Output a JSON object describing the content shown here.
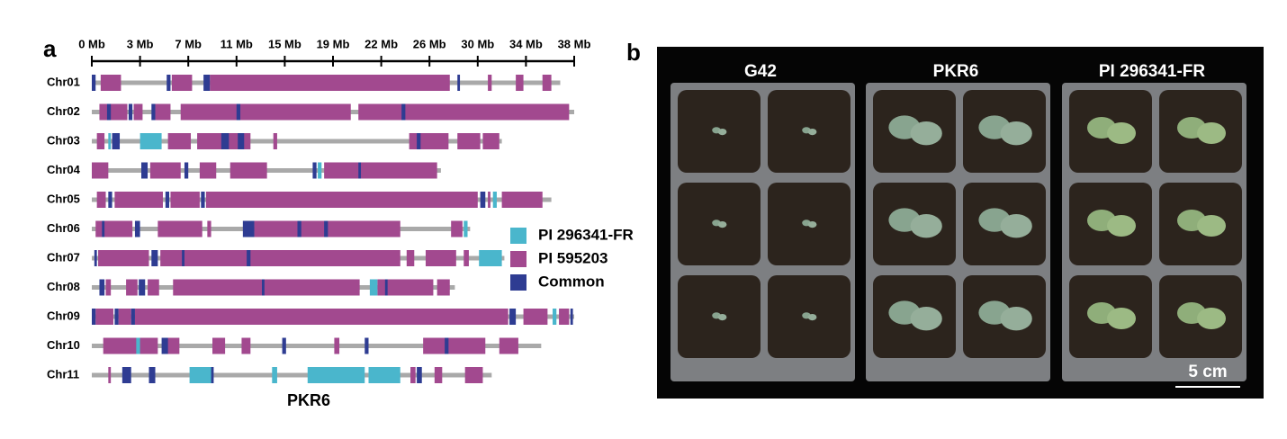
{
  "panel_a": {
    "label": "a",
    "axis_labels": [
      "0 Mb",
      "3 Mb",
      "7 Mb",
      "11 Mb",
      "15 Mb",
      "19 Mb",
      "22 Mb",
      "26 Mb",
      "30 Mb",
      "34 Mb",
      "38 Mb"
    ],
    "legend": [
      {
        "name": "PI 296341-FR",
        "color": "#4ab6cc"
      },
      {
        "name": "PI 595203",
        "color": "#a2498f"
      },
      {
        "name": "Common",
        "color": "#2e3c92"
      }
    ],
    "chromosomes": [
      {
        "name": "Chr01",
        "length": 36.9,
        "blocks": [
          [],
          [
            [
              0.7,
              2.3
            ],
            [
              6.3,
              7.9
            ],
            [
              9.3,
              28.2
            ],
            [
              31.2,
              31.5
            ],
            [
              33.4,
              34
            ],
            [
              35.5,
              36.2
            ]
          ],
          [
            [
              0,
              0.3
            ],
            [
              8.8,
              9.3
            ],
            [
              5.9,
              6.2
            ],
            [
              28.8,
              29
            ]
          ]
        ]
      },
      {
        "name": "Chr02",
        "length": 38,
        "blocks": [
          [],
          [
            [
              0.6,
              2.8
            ],
            [
              3.3,
              4
            ],
            [
              5,
              6.2
            ],
            [
              7,
              20.4
            ],
            [
              21,
              37.6
            ]
          ],
          [
            [
              1.2,
              1.5
            ],
            [
              2.9,
              3.2
            ],
            [
              4.7,
              5
            ],
            [
              11.4,
              11.7
            ],
            [
              24.4,
              24.7
            ]
          ]
        ]
      },
      {
        "name": "Chr03",
        "length": 32.3,
        "blocks": [
          [
            [
              3.8,
              5.5
            ],
            [
              1.3,
              1.5
            ]
          ],
          [
            [
              0.4,
              1
            ],
            [
              6,
              7.8
            ],
            [
              8.3,
              12.5
            ],
            [
              14.3,
              14.6
            ],
            [
              25,
              28.1
            ],
            [
              28.8,
              30.6
            ],
            [
              30.8,
              32.1
            ]
          ],
          [
            [
              1.6,
              2.2
            ],
            [
              10.2,
              10.8
            ],
            [
              11.5,
              12
            ],
            [
              25.6,
              25.9
            ]
          ]
        ]
      },
      {
        "name": "Chr04",
        "length": 27.5,
        "blocks": [
          [
            [
              17.8,
              18.1
            ]
          ],
          [
            [
              0,
              1.3
            ],
            [
              4.6,
              7
            ],
            [
              8.5,
              9.8
            ],
            [
              10.9,
              13.8
            ],
            [
              18.3,
              27.2
            ]
          ],
          [
            [
              3.9,
              4.4
            ],
            [
              7.3,
              7.6
            ],
            [
              17.4,
              17.7
            ],
            [
              21,
              21.2
            ]
          ]
        ]
      },
      {
        "name": "Chr05",
        "length": 36.2,
        "blocks": [
          [
            [
              31.6,
              31.9
            ]
          ],
          [
            [
              0.4,
              1.1
            ],
            [
              1.8,
              5.6
            ],
            [
              6.2,
              8.5
            ],
            [
              9,
              30.4
            ],
            [
              31.2,
              31.4
            ],
            [
              32.3,
              35.5
            ]
          ],
          [
            [
              1.3,
              1.6
            ],
            [
              5.8,
              6.1
            ],
            [
              8.6,
              8.9
            ],
            [
              30.6,
              31
            ]
          ]
        ]
      },
      {
        "name": "Chr06",
        "length": 29.8,
        "blocks": [
          [
            [
              29.3,
              29.6
            ]
          ],
          [
            [
              0.3,
              3.2
            ],
            [
              5.2,
              8.7
            ],
            [
              9.1,
              9.4
            ],
            [
              12.8,
              24.3
            ],
            [
              28.3,
              29.2
            ]
          ],
          [
            [
              0.8,
              1
            ],
            [
              3.4,
              3.8
            ],
            [
              11.9,
              12.8
            ],
            [
              16.2,
              16.5
            ],
            [
              18.3,
              18.6
            ]
          ]
        ]
      },
      {
        "name": "Chr07",
        "length": 32.5,
        "blocks": [
          [
            [
              30.5,
              32.3
            ]
          ],
          [
            [
              0.5,
              4.5
            ],
            [
              5.4,
              24.3
            ],
            [
              24.8,
              25.4
            ],
            [
              26.3,
              28.7
            ],
            [
              29.3,
              29.7
            ]
          ],
          [
            [
              0.2,
              0.4
            ],
            [
              4.7,
              5.2
            ],
            [
              7.1,
              7.3
            ],
            [
              12.2,
              12.5
            ]
          ]
        ]
      },
      {
        "name": "Chr08",
        "length": 28.6,
        "blocks": [
          [
            [
              21.9,
              22.5
            ]
          ],
          [
            [
              1.1,
              1.5
            ],
            [
              2.7,
              3.6
            ],
            [
              4.4,
              5.3
            ],
            [
              6.4,
              21.1
            ],
            [
              22.5,
              26.9
            ],
            [
              27.2,
              28.2
            ]
          ],
          [
            [
              0.6,
              1
            ],
            [
              3.7,
              4.2
            ],
            [
              13.4,
              13.6
            ],
            [
              23.1,
              23.3
            ]
          ]
        ]
      },
      {
        "name": "Chr09",
        "length": 38,
        "blocks": [
          [
            [
              36.3,
              36.6
            ]
          ],
          [
            [
              0.3,
              1.7
            ],
            [
              2.1,
              3.1
            ],
            [
              3.4,
              32.8
            ],
            [
              34,
              35.9
            ],
            [
              36.8,
              37.6
            ]
          ],
          [
            [
              0,
              0.3
            ],
            [
              1.8,
              2.1
            ],
            [
              3.1,
              3.4
            ],
            [
              32.9,
              33.4
            ],
            [
              37.7,
              37.9
            ]
          ]
        ]
      },
      {
        "name": "Chr10",
        "length": 35.4,
        "blocks": [
          [
            [
              3.5,
              3.8
            ]
          ],
          [
            [
              0.9,
              5.2
            ],
            [
              5.8,
              6.9
            ],
            [
              9.5,
              10.5
            ],
            [
              11.8,
              12.5
            ],
            [
              19.1,
              19.5
            ],
            [
              26.1,
              31
            ],
            [
              32.1,
              33.6
            ]
          ],
          [
            [
              5.5,
              6
            ],
            [
              15,
              15.3
            ],
            [
              21.5,
              21.8
            ],
            [
              27.8,
              28.1
            ]
          ]
        ]
      },
      {
        "name": "Chr11",
        "length": 31.5,
        "blocks": [
          [
            [
              7.7,
              9.4
            ],
            [
              14.2,
              14.6
            ],
            [
              17,
              21.5
            ],
            [
              21.8,
              24.3
            ]
          ],
          [
            [
              1.3,
              1.5
            ],
            [
              25.1,
              25.5
            ],
            [
              27,
              27.6
            ],
            [
              29.4,
              30.8
            ]
          ],
          [
            [
              2.4,
              3.1
            ],
            [
              4.5,
              5
            ],
            [
              9.2,
              9.6
            ],
            [
              25.6,
              26
            ]
          ]
        ]
      }
    ],
    "region_label": "PKR6"
  },
  "panel_b": {
    "label": "b",
    "columns": [
      "G42",
      "PKR6",
      "PI 296341-FR"
    ],
    "scale_label": "5 cm"
  }
}
